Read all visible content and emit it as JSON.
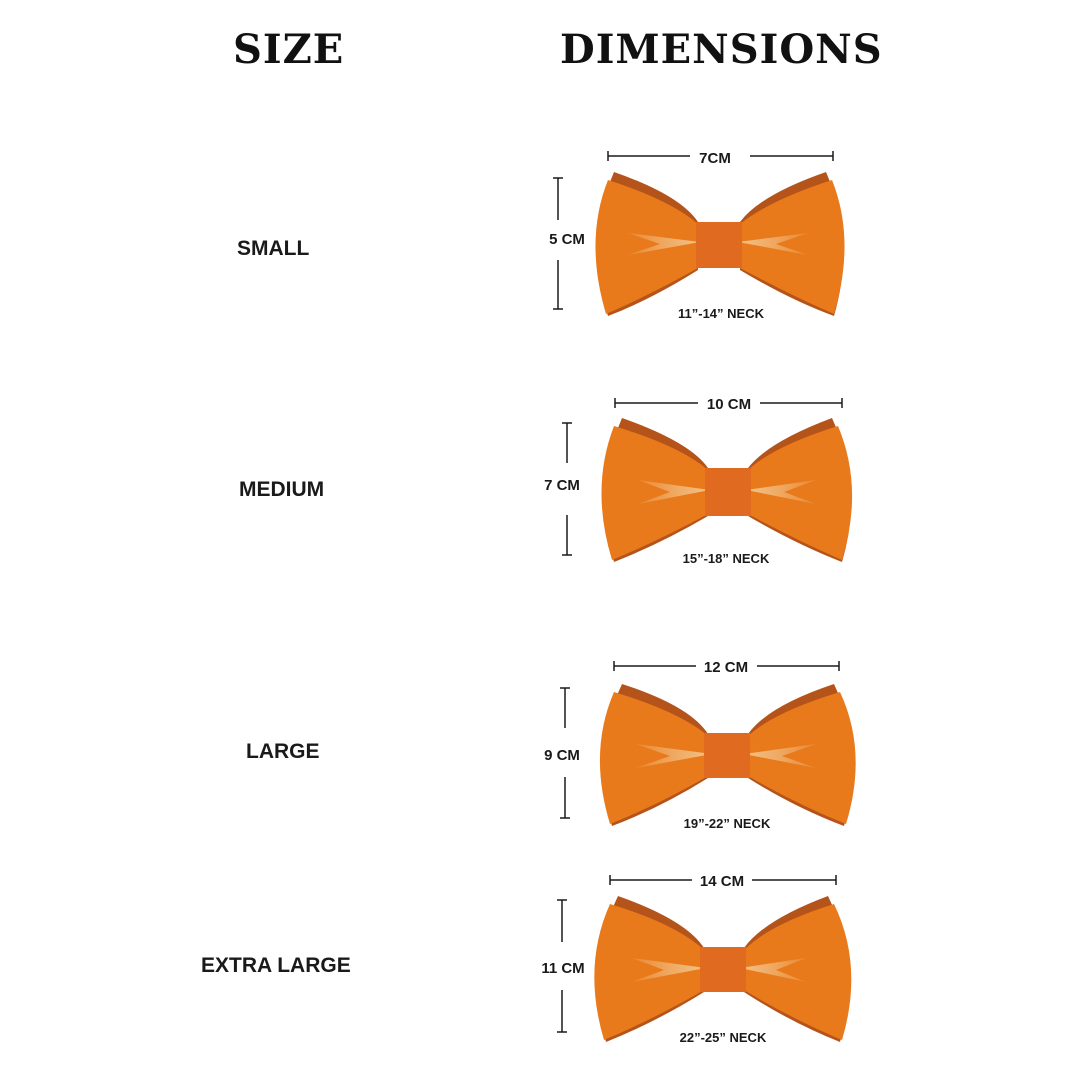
{
  "header": {
    "size": "SIZE",
    "dimensions": "DIMENSIONS"
  },
  "colors": {
    "bow": "#e87a1c",
    "bow_edge": "#b4531a",
    "knot": "#e06a20",
    "highlight": "#f3c58c",
    "ink": "#1a1a1a"
  },
  "sizes": [
    {
      "name": "SMALL",
      "width": "7CM",
      "height": "5 CM",
      "neck": "11”-14” NECK"
    },
    {
      "name": "MEDIUM",
      "width": "10 CM",
      "height": "7 CM",
      "neck": "15”-18” NECK"
    },
    {
      "name": "LARGE",
      "width": "12 CM",
      "height": "9 CM",
      "neck": "19”-22” NECK"
    },
    {
      "name": "EXTRA LARGE",
      "width": "14 CM",
      "height": "11 CM",
      "neck": "22”-25” NECK"
    }
  ]
}
